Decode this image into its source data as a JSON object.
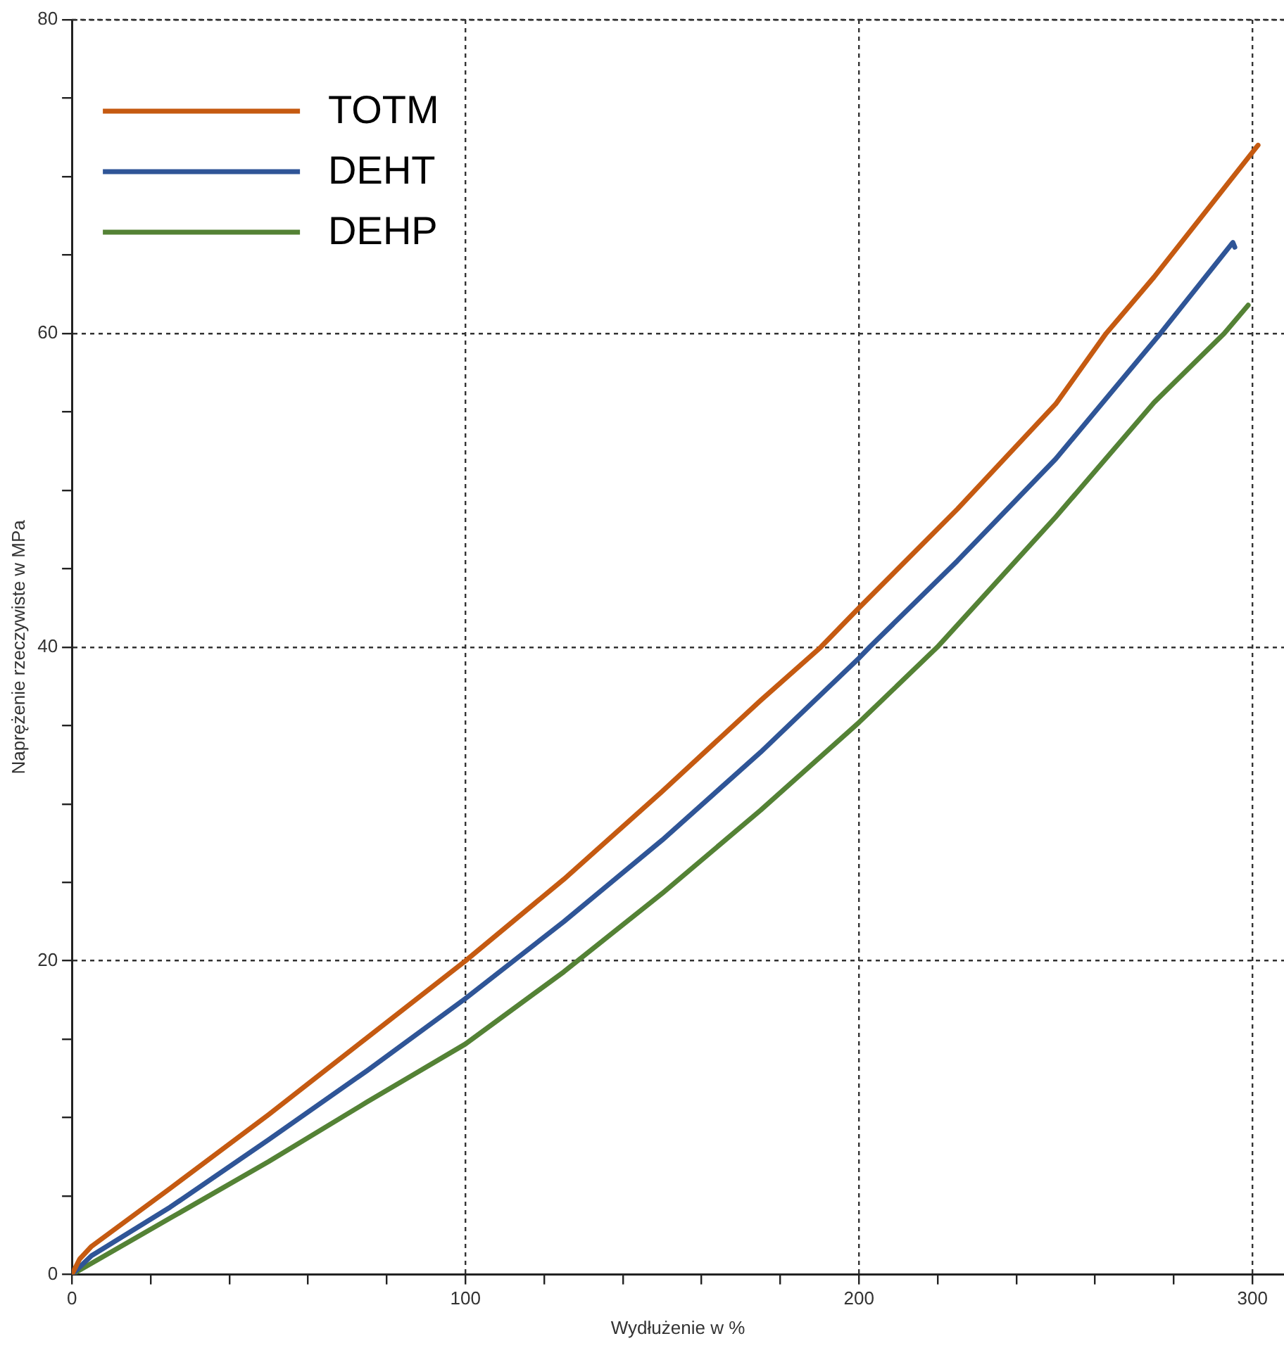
{
  "chart_data": {
    "type": "line",
    "xlabel": "Wydłużenie w %",
    "ylabel": "Naprężenie rzeczywiste w MPa",
    "xlim": [
      0,
      308
    ],
    "ylim": [
      0,
      80
    ],
    "xticks": [
      0,
      {
        "value": 20,
        "label": null
      },
      {
        "value": 40,
        "label": null
      },
      {
        "value": 60,
        "label": null
      },
      {
        "value": 80,
        "label": null
      },
      100,
      {
        "value": 120,
        "label": null
      },
      {
        "value": 140,
        "label": null
      },
      {
        "value": 160,
        "label": null
      },
      {
        "value": 180,
        "label": null
      },
      200,
      {
        "value": 220,
        "label": null
      },
      {
        "value": 240,
        "label": null
      },
      {
        "value": 260,
        "label": null
      },
      {
        "value": 280,
        "label": null
      },
      300
    ],
    "yticks": [
      0,
      {
        "value": 5,
        "label": null
      },
      {
        "value": 10,
        "label": null
      },
      {
        "value": 15,
        "label": null
      },
      20,
      {
        "value": 25,
        "label": null
      },
      {
        "value": 30,
        "label": null
      },
      {
        "value": 35,
        "label": null
      },
      40,
      {
        "value": 45,
        "label": null
      },
      {
        "value": 50,
        "label": null
      },
      {
        "value": 55,
        "label": null
      },
      60,
      {
        "value": 65,
        "label": null
      },
      {
        "value": 70,
        "label": null
      },
      {
        "value": 75,
        "label": null
      },
      80
    ],
    "grid": true,
    "legend": "top left",
    "marker": "none",
    "line_style": "solid",
    "series": [
      {
        "name": "TOTM",
        "color": "#c55a11",
        "x": [
          0,
          2,
          5,
          25,
          50,
          75,
          100,
          125,
          150,
          175,
          190.3,
          200,
          225,
          250,
          262.8,
          275,
          301.4
        ],
        "values": [
          0,
          1,
          1.8,
          5.5,
          10.2,
          15.1,
          20,
          25.2,
          30.8,
          36.6,
          40,
          42.5,
          48.8,
          55.5,
          60,
          63.6,
          72
        ]
      },
      {
        "name": "DEHT",
        "color": "#2f5597",
        "x": [
          0,
          5,
          25,
          50,
          75,
          100,
          125,
          150,
          175,
          200,
          202.7,
          225,
          250,
          276.6,
          295,
          295.5
        ],
        "values": [
          0,
          1.2,
          4.3,
          8.6,
          13,
          17.6,
          22.5,
          27.7,
          33.3,
          39.3,
          40,
          45.5,
          52,
          60,
          65.8,
          65.5
        ]
      },
      {
        "name": "DEHP",
        "color": "#548235",
        "x": [
          0,
          25,
          50,
          75,
          100,
          125,
          150,
          175,
          200,
          219.9,
          250,
          275,
          292.8,
          298.9
        ],
        "values": [
          0,
          3.6,
          7.2,
          11,
          14.7,
          19.3,
          24.3,
          29.6,
          35.2,
          40,
          48.3,
          55.6,
          60,
          61.8
        ]
      }
    ]
  }
}
